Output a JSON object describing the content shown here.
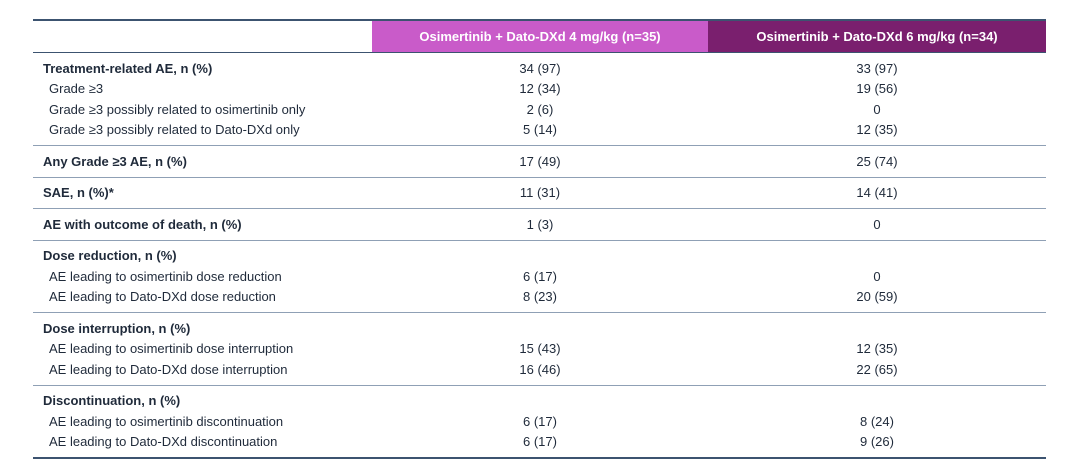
{
  "table": {
    "columns": [
      "Osimertinib + Dato-DXd 4 mg/kg (n=35)",
      "Osimertinib + Dato-DXd 6 mg/kg (n=34)"
    ],
    "groups": [
      [
        [
          "Treatment-related AE, n (%)",
          "34 (97)",
          "33 (97)"
        ],
        [
          "Grade ≥3",
          "12 (34)",
          "19 (56)"
        ],
        [
          "Grade ≥3 possibly related to osimertinib only",
          "2 (6)",
          "0"
        ],
        [
          "Grade ≥3 possibly related to Dato-DXd only",
          "5 (14)",
          "12 (35)"
        ]
      ],
      [
        [
          "Any Grade ≥3 AE, n (%)",
          "17 (49)",
          "25 (74)"
        ]
      ],
      [
        [
          "SAE, n (%)*",
          "11 (31)",
          "14 (41)"
        ]
      ],
      [
        [
          "AE with outcome of death, n (%)",
          "1 (3)",
          "0"
        ]
      ],
      [
        [
          "Dose reduction, n (%)"
        ],
        [
          "AE leading to osimertinib dose reduction",
          "6 (17)",
          "0"
        ],
        [
          "AE leading to Dato-DXd dose reduction",
          "8 (23)",
          "20 (59)"
        ]
      ],
      [
        [
          "Dose interruption, n (%)"
        ],
        [
          "AE leading to osimertinib dose interruption",
          "15 (43)",
          "12 (35)"
        ],
        [
          "AE leading to Dato-DXd dose interruption",
          "16 (46)",
          "22 (65)"
        ]
      ],
      [
        [
          "Discontinuation, n (%)"
        ],
        [
          "AE leading to osimertinib discontinuation",
          "6 (17)",
          "8 (24)"
        ],
        [
          "AE leading to Dato-DXd discontinuation",
          "6 (17)",
          "9 (26)"
        ]
      ]
    ]
  }
}
